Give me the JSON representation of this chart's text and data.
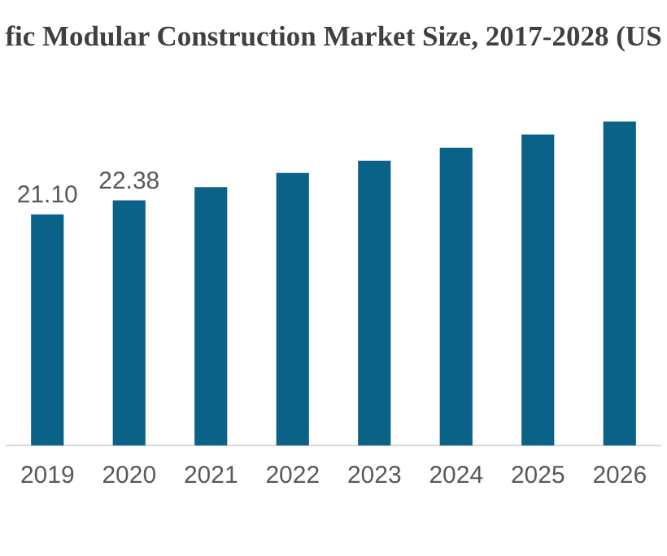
{
  "chart_data": {
    "type": "bar",
    "title": "fic Modular Construction Market Size, 2017-2028 (US",
    "categories": [
      "2019",
      "2020",
      "2021",
      "2022",
      "2023",
      "2024",
      "2025",
      "2026"
    ],
    "values": [
      21.1,
      22.38,
      23.6,
      24.9,
      26.0,
      27.2,
      28.4,
      29.6
    ],
    "value_labels": [
      "21.10",
      "22.38",
      null,
      null,
      null,
      null,
      null,
      null
    ],
    "color": "#0a6289",
    "grid": false,
    "legend": false
  }
}
